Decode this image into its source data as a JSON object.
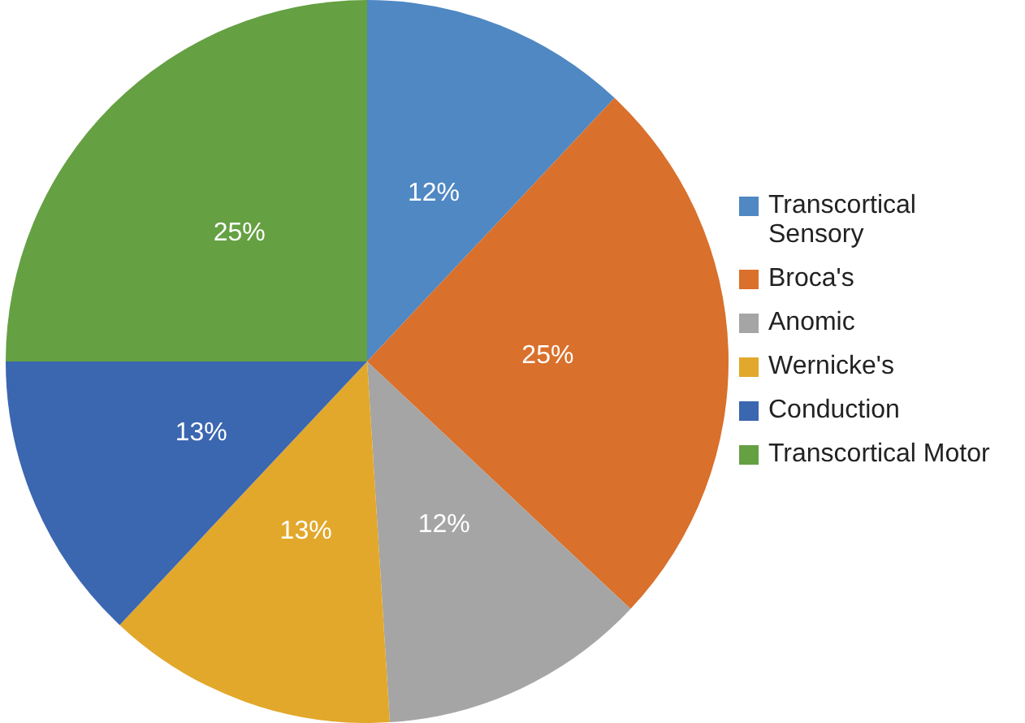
{
  "chart_data": {
    "type": "pie",
    "categories": [
      "Transcortical Sensory",
      "Broca's",
      "Anomic",
      "Wernicke's",
      "Conduction",
      "Transcortical Motor"
    ],
    "values": [
      12,
      25,
      12,
      13,
      13,
      25
    ],
    "value_labels": [
      "12%",
      "25%",
      "12%",
      "13%",
      "13%",
      "25%"
    ],
    "colors": [
      "#4f88c3",
      "#d9702b",
      "#a5a5a5",
      "#e2a82b",
      "#3b66b0",
      "#65a043"
    ],
    "legend": "right"
  }
}
